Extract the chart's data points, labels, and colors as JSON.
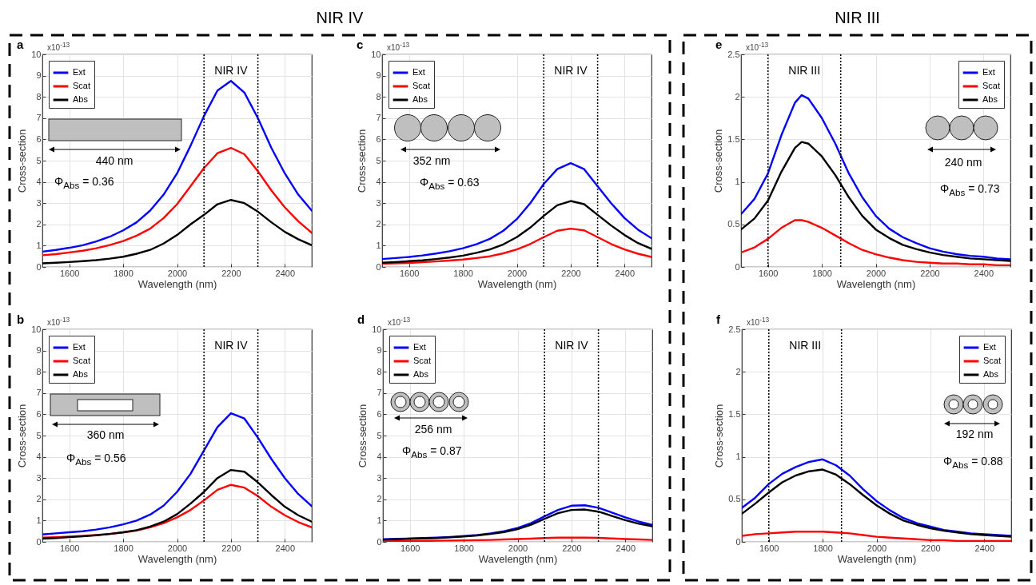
{
  "chart_data": [
    {
      "type": "line",
      "xlabel": "Wavelength (nm)",
      "ylabel": "Cross-section",
      "x": [
        1500,
        1550,
        1600,
        1650,
        1700,
        1750,
        1800,
        1850,
        1900,
        1950,
        2000,
        2050,
        2100,
        2150,
        2200,
        2250,
        2300,
        2350,
        2400,
        2450,
        2500
      ],
      "xlim": [
        1500,
        2500
      ],
      "xticks": [
        1600,
        1800,
        2000,
        2200,
        2400
      ],
      "ylim": [
        0,
        10
      ],
      "yticks": [
        0,
        1,
        2,
        3,
        4,
        5,
        6,
        7,
        8,
        9,
        10
      ],
      "grid": true,
      "legend": "top left",
      "line_style": "solid",
      "ref_lines": [
        {
          "axis": "x",
          "value": 2100,
          "line_style": "dotted",
          "color": "#000000"
        },
        {
          "axis": "x",
          "value": 2300,
          "line_style": "dotted",
          "color": "#000000"
        }
      ],
      "annotations": [
        "a",
        "x10$^{-13}$",
        "440 nm",
        "Φ$_{Abs}$ = 0.36",
        "NIR IV",
        "NIR IV"
      ],
      "series": [
        {
          "name": "Ext",
          "color": "#0000ff",
          "values": [
            0.72,
            0.8,
            0.9,
            1.02,
            1.2,
            1.42,
            1.72,
            2.1,
            2.65,
            3.4,
            4.4,
            5.7,
            7.1,
            8.3,
            8.75,
            8.2,
            7.0,
            5.6,
            4.4,
            3.4,
            2.65
          ]
        },
        {
          "name": "Scat",
          "color": "#ff0000",
          "values": [
            0.55,
            0.6,
            0.68,
            0.76,
            0.88,
            1.03,
            1.22,
            1.47,
            1.8,
            2.3,
            2.95,
            3.8,
            4.65,
            5.35,
            5.6,
            5.3,
            4.5,
            3.6,
            2.8,
            2.15,
            1.6
          ]
        },
        {
          "name": "Abs",
          "color": "#000000",
          "values": [
            0.17,
            0.2,
            0.23,
            0.27,
            0.32,
            0.39,
            0.48,
            0.62,
            0.8,
            1.1,
            1.5,
            2.0,
            2.45,
            2.95,
            3.15,
            3.0,
            2.6,
            2.1,
            1.65,
            1.3,
            1.02
          ]
        }
      ]
    },
    {
      "type": "line",
      "xlabel": "Wavelength (nm)",
      "ylabel": "Cross-section",
      "x": [
        1500,
        1550,
        1600,
        1650,
        1700,
        1750,
        1800,
        1850,
        1900,
        1950,
        2000,
        2050,
        2100,
        2150,
        2200,
        2250,
        2300,
        2350,
        2400,
        2450,
        2500
      ],
      "xlim": [
        1500,
        2500
      ],
      "xticks": [
        1600,
        1800,
        2000,
        2200,
        2400
      ],
      "ylim": [
        0,
        10
      ],
      "yticks": [
        0,
        1,
        2,
        3,
        4,
        5,
        6,
        7,
        8,
        9,
        10
      ],
      "grid": true,
      "legend": "top left",
      "line_style": "solid",
      "ref_lines": [
        {
          "axis": "x",
          "value": 2100,
          "line_style": "dotted",
          "color": "#000000"
        },
        {
          "axis": "x",
          "value": 2300,
          "line_style": "dotted",
          "color": "#000000"
        }
      ],
      "annotations": [
        "c",
        "x10$^{-13}$",
        "352 nm",
        "Φ$_{Abs}$ = 0.63",
        "NIR IV"
      ],
      "series": [
        {
          "name": "Ext",
          "color": "#0000ff",
          "values": [
            0.37,
            0.42,
            0.47,
            0.54,
            0.63,
            0.74,
            0.88,
            1.07,
            1.32,
            1.7,
            2.25,
            3.0,
            3.9,
            4.6,
            4.88,
            4.6,
            3.8,
            3.0,
            2.3,
            1.75,
            1.35
          ]
        },
        {
          "name": "Scat",
          "color": "#ff0000",
          "values": [
            0.15,
            0.17,
            0.19,
            0.22,
            0.26,
            0.3,
            0.35,
            0.42,
            0.5,
            0.64,
            0.82,
            1.08,
            1.4,
            1.7,
            1.8,
            1.72,
            1.4,
            1.08,
            0.82,
            0.62,
            0.47
          ]
        },
        {
          "name": "Abs",
          "color": "#000000",
          "values": [
            0.2,
            0.23,
            0.27,
            0.31,
            0.37,
            0.44,
            0.53,
            0.66,
            0.82,
            1.06,
            1.4,
            1.85,
            2.4,
            2.9,
            3.1,
            2.95,
            2.45,
            1.95,
            1.5,
            1.12,
            0.85
          ]
        }
      ]
    },
    {
      "type": "line",
      "xlabel": "Wavelength (nm)",
      "ylabel": "Cross-section",
      "x": [
        1500,
        1550,
        1600,
        1650,
        1700,
        1725,
        1750,
        1800,
        1850,
        1900,
        1950,
        2000,
        2050,
        2100,
        2150,
        2200,
        2250,
        2300,
        2350,
        2400,
        2450,
        2500
      ],
      "xlim": [
        1500,
        2500
      ],
      "xticks": [
        1600,
        1800,
        2000,
        2200,
        2400
      ],
      "ylim": [
        0,
        2.5
      ],
      "yticks": [
        0,
        0.5,
        1,
        1.5,
        2,
        2.5
      ],
      "grid": true,
      "legend": "top right",
      "line_style": "solid",
      "ref_lines": [
        {
          "axis": "x",
          "value": 1600,
          "line_style": "dotted",
          "color": "#000000"
        },
        {
          "axis": "x",
          "value": 1870,
          "line_style": "dotted",
          "color": "#000000"
        }
      ],
      "annotations": [
        "e",
        "x10$^{-13}$",
        "240 nm",
        "Φ$_{Abs}$ = 0.73",
        "NIR III",
        "NIR III"
      ],
      "series": [
        {
          "name": "Ext",
          "color": "#0000ff",
          "values": [
            0.62,
            0.8,
            1.1,
            1.55,
            1.93,
            2.02,
            1.98,
            1.75,
            1.45,
            1.1,
            0.82,
            0.6,
            0.45,
            0.35,
            0.28,
            0.22,
            0.18,
            0.15,
            0.13,
            0.12,
            0.1,
            0.09
          ]
        },
        {
          "name": "Scat",
          "color": "#ff0000",
          "values": [
            0.17,
            0.23,
            0.33,
            0.46,
            0.55,
            0.55,
            0.53,
            0.46,
            0.37,
            0.28,
            0.2,
            0.15,
            0.11,
            0.08,
            0.06,
            0.05,
            0.04,
            0.04,
            0.03,
            0.03,
            0.02,
            0.02
          ]
        },
        {
          "name": "Abs",
          "color": "#000000",
          "values": [
            0.44,
            0.57,
            0.78,
            1.12,
            1.4,
            1.47,
            1.45,
            1.3,
            1.08,
            0.82,
            0.6,
            0.44,
            0.34,
            0.26,
            0.21,
            0.17,
            0.14,
            0.12,
            0.1,
            0.09,
            0.08,
            0.07
          ]
        }
      ]
    },
    {
      "type": "line",
      "xlabel": "Wavelength (nm)",
      "ylabel": "Cross-section",
      "x": [
        1500,
        1550,
        1600,
        1650,
        1700,
        1750,
        1800,
        1850,
        1900,
        1950,
        2000,
        2050,
        2100,
        2150,
        2200,
        2250,
        2300,
        2350,
        2400,
        2450,
        2500
      ],
      "xlim": [
        1500,
        2500
      ],
      "xticks": [
        1600,
        1800,
        2000,
        2200,
        2400
      ],
      "ylim": [
        0,
        10
      ],
      "yticks": [
        0,
        1,
        2,
        3,
        4,
        5,
        6,
        7,
        8,
        9,
        10
      ],
      "grid": true,
      "legend": "top left",
      "line_style": "solid",
      "ref_lines": [
        {
          "axis": "x",
          "value": 2100,
          "line_style": "dotted",
          "color": "#000000"
        },
        {
          "axis": "x",
          "value": 2300,
          "line_style": "dotted",
          "color": "#000000"
        }
      ],
      "annotations": [
        "b",
        "x10$^{-13}$",
        "360 nm",
        "Φ$_{Abs}$ = 0.56",
        "NIR IV"
      ],
      "series": [
        {
          "name": "Ext",
          "color": "#0000ff",
          "values": [
            0.35,
            0.4,
            0.45,
            0.5,
            0.58,
            0.68,
            0.82,
            1.0,
            1.28,
            1.7,
            2.35,
            3.2,
            4.3,
            5.4,
            6.05,
            5.8,
            4.9,
            3.9,
            3.0,
            2.25,
            1.68
          ]
        },
        {
          "name": "Scat",
          "color": "#ff0000",
          "values": [
            0.2,
            0.22,
            0.25,
            0.28,
            0.32,
            0.37,
            0.44,
            0.53,
            0.68,
            0.88,
            1.15,
            1.5,
            1.95,
            2.45,
            2.68,
            2.55,
            2.15,
            1.65,
            1.25,
            0.93,
            0.68
          ]
        },
        {
          "name": "Abs",
          "color": "#000000",
          "values": [
            0.15,
            0.18,
            0.22,
            0.26,
            0.31,
            0.37,
            0.45,
            0.55,
            0.72,
            0.95,
            1.3,
            1.8,
            2.35,
            3.0,
            3.38,
            3.3,
            2.8,
            2.2,
            1.65,
            1.25,
            0.95
          ]
        }
      ]
    },
    {
      "type": "line",
      "xlabel": "Wavelength (nm)",
      "ylabel": "Cross-section",
      "x": [
        1500,
        1550,
        1600,
        1650,
        1700,
        1750,
        1800,
        1850,
        1900,
        1950,
        2000,
        2050,
        2100,
        2150,
        2200,
        2250,
        2300,
        2350,
        2400,
        2450,
        2500
      ],
      "xlim": [
        1500,
        2500
      ],
      "xticks": [
        1600,
        1800,
        2000,
        2200,
        2400
      ],
      "ylim": [
        0,
        10
      ],
      "yticks": [
        0,
        1,
        2,
        3,
        4,
        5,
        6,
        7,
        8,
        9,
        10
      ],
      "grid": true,
      "legend": "top left",
      "line_style": "solid",
      "ref_lines": [
        {
          "axis": "x",
          "value": 2100,
          "line_style": "dotted",
          "color": "#000000"
        },
        {
          "axis": "x",
          "value": 2300,
          "line_style": "dotted",
          "color": "#000000"
        }
      ],
      "annotations": [
        "d",
        "x10$^{-13}$",
        "256 nm",
        "Φ$_{Abs}$ = 0.87",
        "NIR IV"
      ],
      "series": [
        {
          "name": "Ext",
          "color": "#0000ff",
          "values": [
            0.12,
            0.14,
            0.16,
            0.18,
            0.2,
            0.23,
            0.27,
            0.32,
            0.4,
            0.5,
            0.65,
            0.88,
            1.2,
            1.5,
            1.7,
            1.72,
            1.6,
            1.38,
            1.15,
            0.95,
            0.8
          ]
        },
        {
          "name": "Scat",
          "color": "#ff0000",
          "values": [
            0.02,
            0.03,
            0.03,
            0.04,
            0.05,
            0.06,
            0.07,
            0.08,
            0.09,
            0.11,
            0.13,
            0.15,
            0.18,
            0.2,
            0.2,
            0.2,
            0.19,
            0.16,
            0.13,
            0.11,
            0.09
          ]
        },
        {
          "name": "Abs",
          "color": "#000000",
          "values": [
            0.1,
            0.12,
            0.14,
            0.16,
            0.18,
            0.21,
            0.25,
            0.3,
            0.37,
            0.46,
            0.6,
            0.8,
            1.08,
            1.35,
            1.5,
            1.52,
            1.42,
            1.22,
            1.02,
            0.85,
            0.73
          ]
        }
      ]
    },
    {
      "type": "line",
      "xlabel": "Wavelength (nm)",
      "ylabel": "Cross-section",
      "x": [
        1500,
        1550,
        1600,
        1650,
        1700,
        1750,
        1800,
        1850,
        1900,
        1950,
        2000,
        2050,
        2100,
        2150,
        2200,
        2250,
        2300,
        2350,
        2400,
        2450,
        2500
      ],
      "xlim": [
        1500,
        2500
      ],
      "xticks": [
        1600,
        1800,
        2000,
        2200,
        2400
      ],
      "ylim": [
        0,
        2.5
      ],
      "yticks": [
        0,
        0.5,
        1,
        1.5,
        2,
        2.5
      ],
      "grid": true,
      "legend": "top right",
      "line_style": "solid",
      "ref_lines": [
        {
          "axis": "x",
          "value": 1600,
          "line_style": "dotted",
          "color": "#000000"
        },
        {
          "axis": "x",
          "value": 1870,
          "line_style": "dotted",
          "color": "#000000"
        }
      ],
      "annotations": [
        "f",
        "x10$^{-13}$",
        "192 nm",
        "Φ$_{Abs}$ = 0.88",
        "NIR III"
      ],
      "series": [
        {
          "name": "Ext",
          "color": "#0000ff",
          "values": [
            0.4,
            0.52,
            0.68,
            0.8,
            0.88,
            0.94,
            0.97,
            0.9,
            0.78,
            0.62,
            0.48,
            0.37,
            0.28,
            0.22,
            0.18,
            0.14,
            0.12,
            0.1,
            0.09,
            0.08,
            0.07
          ]
        },
        {
          "name": "Scat",
          "color": "#ff0000",
          "values": [
            0.07,
            0.09,
            0.1,
            0.11,
            0.12,
            0.12,
            0.12,
            0.11,
            0.1,
            0.08,
            0.06,
            0.05,
            0.04,
            0.03,
            0.02,
            0.02,
            0.01,
            0.01,
            0.01,
            0.01,
            0.01
          ]
        },
        {
          "name": "Abs",
          "color": "#000000",
          "values": [
            0.33,
            0.45,
            0.58,
            0.7,
            0.78,
            0.83,
            0.85,
            0.79,
            0.68,
            0.55,
            0.43,
            0.33,
            0.25,
            0.2,
            0.16,
            0.13,
            0.11,
            0.09,
            0.08,
            0.07,
            0.06
          ]
        }
      ]
    }
  ]
}
